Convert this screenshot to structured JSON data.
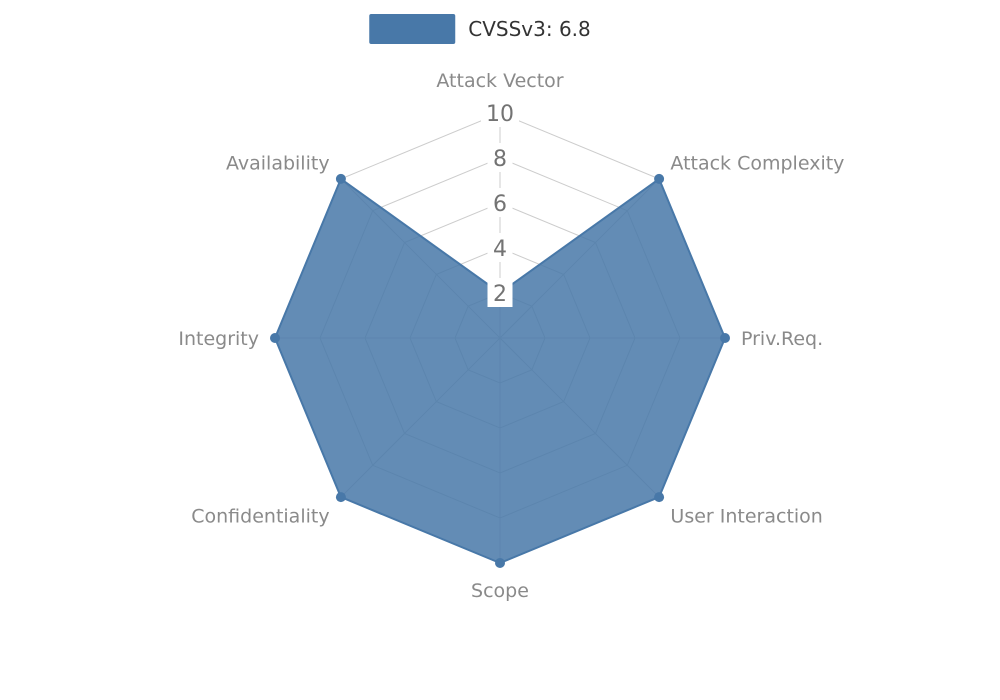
{
  "legend": {
    "label": "CVSSv3: 6.8",
    "color": "#4878a8"
  },
  "chart_data": {
    "type": "radar",
    "title": "CVSSv3: 6.8",
    "categories": [
      "Attack Vector",
      "Attack Complexity",
      "Priv.Req.",
      "User Interaction",
      "Scope",
      "Confidentiality",
      "Integrity",
      "Availability"
    ],
    "series": [
      {
        "name": "CVSSv3: 6.8",
        "values": [
          2,
          10,
          10,
          10,
          10,
          10,
          10,
          10
        ]
      }
    ],
    "ticks": [
      2,
      4,
      6,
      8,
      10
    ],
    "max": 10,
    "legend_position": "top",
    "grid": "polygon-web",
    "fill_color": "#4878a8",
    "fill_opacity": 0.85,
    "grid_color": "#cccccc",
    "tick_color": "#737373",
    "label_color": "#8a8a8a",
    "background_color": "#ffffff"
  }
}
